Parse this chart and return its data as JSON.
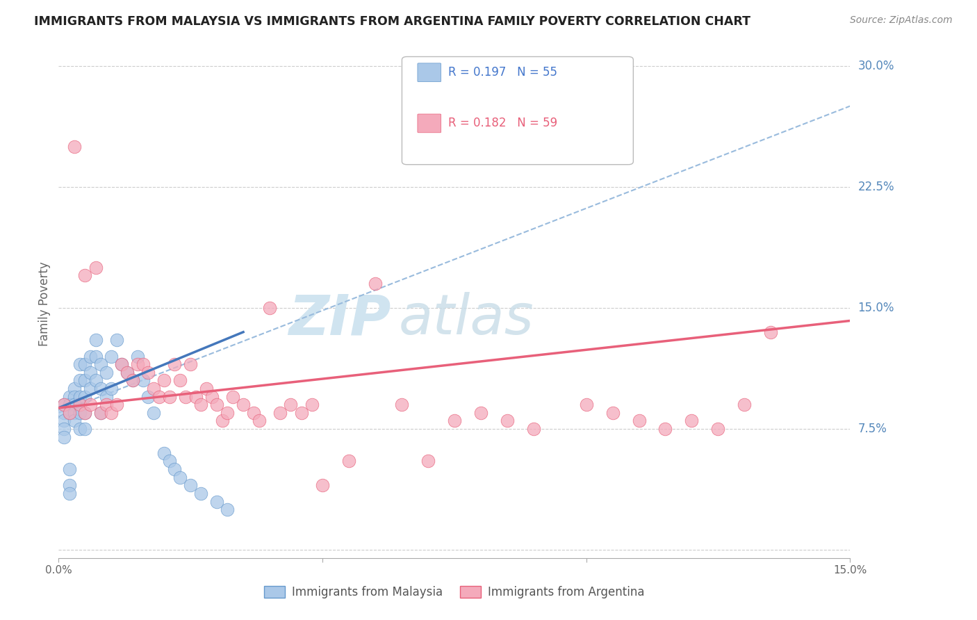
{
  "title": "IMMIGRANTS FROM MALAYSIA VS IMMIGRANTS FROM ARGENTINA FAMILY POVERTY CORRELATION CHART",
  "source": "Source: ZipAtlas.com",
  "ylabel": "Family Poverty",
  "xlim": [
    0.0,
    0.15
  ],
  "ylim": [
    -0.005,
    0.31
  ],
  "yticks": [
    0.0,
    0.075,
    0.15,
    0.225,
    0.3
  ],
  "ytick_labels": [
    "",
    "7.5%",
    "15.0%",
    "22.5%",
    "30.0%"
  ],
  "malaysia_R": 0.197,
  "malaysia_N": 55,
  "argentina_R": 0.182,
  "argentina_N": 59,
  "malaysia_color": "#aac8e8",
  "argentina_color": "#f4aabb",
  "malaysia_edge_color": "#6699cc",
  "argentina_edge_color": "#e8607a",
  "malaysia_line_color": "#4477bb",
  "argentina_line_color": "#e8607a",
  "dashed_line_color": "#99bbdd",
  "blue_text_color": "#4477cc",
  "pink_text_color": "#e8607a",
  "title_color": "#222222",
  "right_label_color": "#5588bb",
  "background_color": "#ffffff",
  "grid_color": "#cccccc",
  "watermark_color": "#d0e4f0",
  "malaysia_x": [
    0.001,
    0.001,
    0.001,
    0.001,
    0.001,
    0.002,
    0.002,
    0.002,
    0.002,
    0.002,
    0.002,
    0.003,
    0.003,
    0.003,
    0.003,
    0.003,
    0.004,
    0.004,
    0.004,
    0.004,
    0.004,
    0.005,
    0.005,
    0.005,
    0.005,
    0.005,
    0.006,
    0.006,
    0.006,
    0.007,
    0.007,
    0.007,
    0.008,
    0.008,
    0.008,
    0.009,
    0.009,
    0.01,
    0.01,
    0.011,
    0.012,
    0.013,
    0.014,
    0.015,
    0.016,
    0.017,
    0.018,
    0.02,
    0.021,
    0.022,
    0.023,
    0.025,
    0.027,
    0.03,
    0.032
  ],
  "malaysia_y": [
    0.09,
    0.085,
    0.08,
    0.075,
    0.07,
    0.095,
    0.09,
    0.085,
    0.05,
    0.04,
    0.035,
    0.1,
    0.095,
    0.09,
    0.085,
    0.08,
    0.115,
    0.105,
    0.095,
    0.085,
    0.075,
    0.115,
    0.105,
    0.095,
    0.085,
    0.075,
    0.12,
    0.11,
    0.1,
    0.13,
    0.12,
    0.105,
    0.115,
    0.1,
    0.085,
    0.11,
    0.095,
    0.12,
    0.1,
    0.13,
    0.115,
    0.11,
    0.105,
    0.12,
    0.105,
    0.095,
    0.085,
    0.06,
    0.055,
    0.05,
    0.045,
    0.04,
    0.035,
    0.03,
    0.025
  ],
  "argentina_x": [
    0.001,
    0.002,
    0.003,
    0.004,
    0.005,
    0.005,
    0.006,
    0.007,
    0.008,
    0.009,
    0.01,
    0.011,
    0.012,
    0.013,
    0.014,
    0.015,
    0.016,
    0.017,
    0.018,
    0.019,
    0.02,
    0.021,
    0.022,
    0.023,
    0.024,
    0.025,
    0.026,
    0.027,
    0.028,
    0.029,
    0.03,
    0.031,
    0.032,
    0.033,
    0.035,
    0.037,
    0.038,
    0.04,
    0.042,
    0.044,
    0.046,
    0.048,
    0.05,
    0.055,
    0.06,
    0.065,
    0.07,
    0.075,
    0.08,
    0.085,
    0.09,
    0.1,
    0.105,
    0.11,
    0.115,
    0.12,
    0.125,
    0.13,
    0.135
  ],
  "argentina_y": [
    0.09,
    0.085,
    0.25,
    0.09,
    0.17,
    0.085,
    0.09,
    0.175,
    0.085,
    0.09,
    0.085,
    0.09,
    0.115,
    0.11,
    0.105,
    0.115,
    0.115,
    0.11,
    0.1,
    0.095,
    0.105,
    0.095,
    0.115,
    0.105,
    0.095,
    0.115,
    0.095,
    0.09,
    0.1,
    0.095,
    0.09,
    0.08,
    0.085,
    0.095,
    0.09,
    0.085,
    0.08,
    0.15,
    0.085,
    0.09,
    0.085,
    0.09,
    0.04,
    0.055,
    0.165,
    0.09,
    0.055,
    0.08,
    0.085,
    0.08,
    0.075,
    0.09,
    0.085,
    0.08,
    0.075,
    0.08,
    0.075,
    0.09,
    0.135
  ],
  "malaysia_trend_x": [
    0.0,
    0.035
  ],
  "malaysia_trend_y": [
    0.088,
    0.135
  ],
  "argentina_trend_x": [
    0.0,
    0.15
  ],
  "argentina_trend_y": [
    0.088,
    0.142
  ],
  "dashed_trend_x": [
    0.0,
    0.15
  ],
  "dashed_trend_y": [
    0.085,
    0.275
  ]
}
